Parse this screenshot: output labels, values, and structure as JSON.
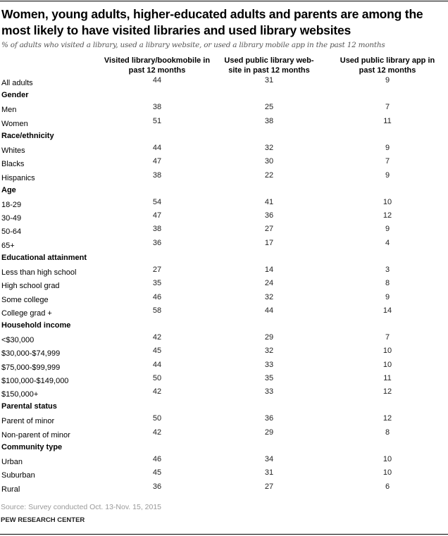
{
  "title": "Women, young adults, higher-educated adults and parents are among the most likely to have visited libraries and used library websites",
  "subtitle": "% of adults who visited a library, used a library website, or used a library mobile app in the past 12 months",
  "source": "Source: Survey conducted Oct. 13-Nov. 15, 2015",
  "organization": "PEW RESEARCH CENTER",
  "chart_data": {
    "type": "table",
    "columns": [
      "Visited library/bookmobile in past 12 months",
      "Used public library web-site in past 12 months",
      "Used public library app in past 12 months"
    ],
    "rows": [
      {
        "label": "All adults",
        "values": [
          "44",
          "31",
          "9"
        ]
      },
      {
        "label": "Gender",
        "group": true
      },
      {
        "label": "Men",
        "values": [
          "38",
          "25",
          "7"
        ]
      },
      {
        "label": "Women",
        "values": [
          "51",
          "38",
          "11"
        ]
      },
      {
        "label": "Race/ethnicity",
        "group": true
      },
      {
        "label": "Whites",
        "values": [
          "44",
          "32",
          "9"
        ]
      },
      {
        "label": "Blacks",
        "values": [
          "47",
          "30",
          "7"
        ]
      },
      {
        "label": "Hispanics",
        "values": [
          "38",
          "22",
          "9"
        ]
      },
      {
        "label": "Age",
        "group": true
      },
      {
        "label": "18-29",
        "values": [
          "54",
          "41",
          "10"
        ]
      },
      {
        "label": "30-49",
        "values": [
          "47",
          "36",
          "12"
        ]
      },
      {
        "label": "50-64",
        "values": [
          "38",
          "27",
          "9"
        ]
      },
      {
        "label": "65+",
        "values": [
          "36",
          "17",
          "4"
        ]
      },
      {
        "label": "Educational attainment",
        "group": true
      },
      {
        "label": "Less than high school",
        "values": [
          "27",
          "14",
          "3"
        ]
      },
      {
        "label": "High school grad",
        "values": [
          "35",
          "24",
          "8"
        ]
      },
      {
        "label": "Some college",
        "values": [
          "46",
          "32",
          "9"
        ]
      },
      {
        "label": "College grad +",
        "values": [
          "58",
          "44",
          "14"
        ]
      },
      {
        "label": "Household income",
        "group": true
      },
      {
        "label": "<$30,000",
        "values": [
          "42",
          "29",
          "7"
        ]
      },
      {
        "label": "$30,000-$74,999",
        "values": [
          "45",
          "32",
          "10"
        ]
      },
      {
        "label": "$75,000-$99,999",
        "values": [
          "44",
          "33",
          "10"
        ]
      },
      {
        "label": "$100,000-$149,000",
        "values": [
          "50",
          "35",
          "11"
        ]
      },
      {
        "label": "$150,000+",
        "values": [
          "42",
          "33",
          "12"
        ]
      },
      {
        "label": "Parental status",
        "group": true
      },
      {
        "label": "Parent of minor",
        "values": [
          "50",
          "36",
          "12"
        ]
      },
      {
        "label": "Non-parent of minor",
        "values": [
          "42",
          "29",
          "8"
        ]
      },
      {
        "label": "Community type",
        "group": true
      },
      {
        "label": "Urban",
        "values": [
          "46",
          "34",
          "10"
        ]
      },
      {
        "label": "Suburban",
        "values": [
          "45",
          "31",
          "10"
        ]
      },
      {
        "label": "Rural",
        "values": [
          "36",
          "27",
          "6"
        ]
      }
    ]
  }
}
